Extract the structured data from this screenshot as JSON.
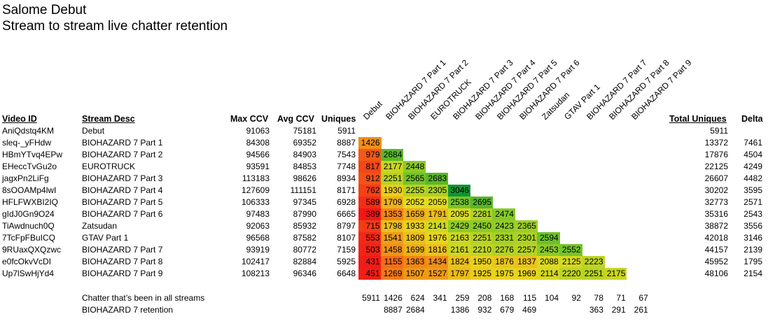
{
  "title": "Salome Debut",
  "subtitle": "Stream to stream live chatter retention",
  "headers": {
    "video_id": "Video ID",
    "stream_desc": "Stream Desc",
    "max_ccv": "Max CCV",
    "avg_ccv": "Avg CCV",
    "uniques": "Uniques",
    "total_uniques": "Total Uniques",
    "delta": "Delta"
  },
  "matrix_columns": [
    "Debut",
    "BIOHAZARD 7 Part 1",
    "BIOHAZARD 7 Part 2",
    "EUROTRUCK",
    "BIOHAZARD 7 Part 3",
    "BIOHAZARD 7 Part 4",
    "BIOHAZARD 7 Part 5",
    "BIOHAZARD 7 Part 6",
    "Zatsudan",
    "GTAV Part 1",
    "BIOHAZARD 7 Part 7",
    "BIOHAZARD 7 Part 8",
    "BIOHAZARD 7 Part 9"
  ],
  "rows": [
    {
      "video_id": "AniQdstq4KM",
      "desc": "Debut",
      "max": "91063",
      "avg": "75181",
      "uniques": "5911",
      "retention": [],
      "total": "5911",
      "delta": ""
    },
    {
      "video_id": "sleq-_yFHdw",
      "desc": "BIOHAZARD 7 Part 1",
      "max": "84308",
      "avg": "69352",
      "uniques": "8887",
      "retention": [
        "1426"
      ],
      "total": "13372",
      "delta": "7461"
    },
    {
      "video_id": "HBmYTvq4EPw",
      "desc": "BIOHAZARD 7 Part 2",
      "max": "94566",
      "avg": "84903",
      "uniques": "7543",
      "retention": [
        "979",
        "2684"
      ],
      "total": "17876",
      "delta": "4504"
    },
    {
      "video_id": "EHeccTvGu2o",
      "desc": "EUROTRUCK",
      "max": "93591",
      "avg": "84853",
      "uniques": "7748",
      "retention": [
        "817",
        "2177",
        "2448"
      ],
      "total": "22125",
      "delta": "4249"
    },
    {
      "video_id": "jagxPn2LiFg",
      "desc": "BIOHAZARD 7 Part 3",
      "max": "113183",
      "avg": "98626",
      "uniques": "8934",
      "retention": [
        "912",
        "2251",
        "2565",
        "2683"
      ],
      "total": "26607",
      "delta": "4482"
    },
    {
      "video_id": "8sOOAMp4lwI",
      "desc": "BIOHAZARD 7 Part 4",
      "max": "127609",
      "avg": "111151",
      "uniques": "8171",
      "retention": [
        "762",
        "1930",
        "2255",
        "2305",
        "3046"
      ],
      "total": "30202",
      "delta": "3595"
    },
    {
      "video_id": "HFLFWXBI2IQ",
      "desc": "BIOHAZARD 7 Part 5",
      "max": "106333",
      "avg": "97345",
      "uniques": "6928",
      "retention": [
        "589",
        "1709",
        "2052",
        "2059",
        "2538",
        "2695"
      ],
      "total": "32773",
      "delta": "2571"
    },
    {
      "video_id": "gIdJ0Gn9O24",
      "desc": "BIOHAZARD 7 Part 6",
      "max": "97483",
      "avg": "87990",
      "uniques": "6665",
      "retention": [
        "389",
        "1353",
        "1659",
        "1791",
        "2095",
        "2281",
        "2474"
      ],
      "total": "35316",
      "delta": "2543"
    },
    {
      "video_id": "TiAwdnuch0Q",
      "desc": "Zatsudan",
      "max": "92063",
      "avg": "85932",
      "uniques": "8797",
      "retention": [
        "715",
        "1798",
        "1933",
        "2141",
        "2429",
        "2450",
        "2423",
        "2365"
      ],
      "total": "38872",
      "delta": "3556"
    },
    {
      "video_id": "7TcFpFBuICQ",
      "desc": "GTAV Part 1",
      "max": "96568",
      "avg": "87582",
      "uniques": "8107",
      "retention": [
        "553",
        "1541",
        "1809",
        "1976",
        "2163",
        "2251",
        "2331",
        "2301",
        "2594"
      ],
      "total": "42018",
      "delta": "3146"
    },
    {
      "video_id": "9RUaxQXQzwc",
      "desc": "BIOHAZARD 7 Part 7",
      "max": "93919",
      "avg": "80772",
      "uniques": "7159",
      "retention": [
        "503",
        "1458",
        "1699",
        "1816",
        "2161",
        "2210",
        "2276",
        "2257",
        "2453",
        "2552"
      ],
      "total": "44157",
      "delta": "2139"
    },
    {
      "video_id": "e0fcOkvVcDI",
      "desc": "BIOHAZARD 7 Part 8",
      "max": "102417",
      "avg": "82884",
      "uniques": "5925",
      "retention": [
        "431",
        "1155",
        "1363",
        "1434",
        "1824",
        "1950",
        "1876",
        "1837",
        "2088",
        "2125",
        "2223"
      ],
      "total": "45952",
      "delta": "1795"
    },
    {
      "video_id": "Up7lSwHjYd4",
      "desc": "BIOHAZARD 7 Part 9",
      "max": "108213",
      "avg": "96346",
      "uniques": "6648",
      "retention": [
        "451",
        "1269",
        "1507",
        "1527",
        "1797",
        "1925",
        "1975",
        "1969",
        "2114",
        "2220",
        "2251",
        "2175"
      ],
      "total": "48106",
      "delta": "2154"
    }
  ],
  "footer": [
    {
      "label": "Chatter that’s been in all streams",
      "values": [
        "5911",
        "1426",
        "624",
        "341",
        "259",
        "208",
        "168",
        "115",
        "104",
        "92",
        "78",
        "71",
        "67"
      ]
    },
    {
      "label": "BIOHAZARD 7 retention",
      "values": [
        "",
        "8887",
        "2684",
        "",
        "1386",
        "932",
        "679",
        "469",
        "",
        "",
        "363",
        "291",
        "261"
      ]
    }
  ]
}
